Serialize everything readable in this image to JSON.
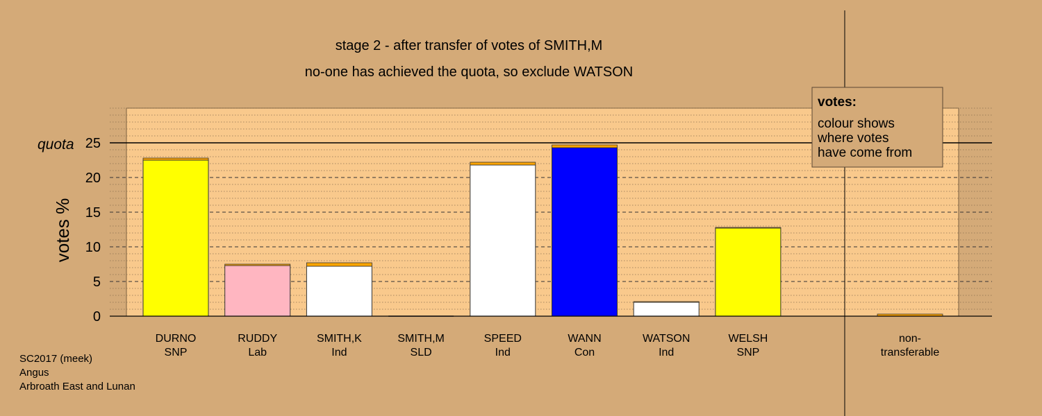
{
  "chart_data": {
    "type": "bar",
    "title_line1": "stage 2 - after transfer of votes of SMITH,M",
    "title_line2": "no-one has achieved the quota, so exclude WATSON",
    "ylabel": "votes %",
    "quota_label": "quota",
    "quota": 25,
    "ylim": [
      0,
      25
    ],
    "yticks": [
      0,
      5,
      10,
      15,
      20,
      25
    ],
    "grid": "dashed major, dotted minor",
    "candidates": [
      {
        "name": "DURNO",
        "party": "SNP",
        "color": "#ffff00",
        "base": 22.5,
        "transfer": 0.3
      },
      {
        "name": "RUDDY",
        "party": "Lab",
        "color": "#ffb6c1",
        "base": 7.3,
        "transfer": 0.2
      },
      {
        "name": "SMITH,K",
        "party": "Ind",
        "color": "#ffffff",
        "base": 7.2,
        "transfer": 0.5
      },
      {
        "name": "SMITH,M",
        "party": "SLD",
        "color": "#ffa500",
        "base": 0,
        "transfer": 0
      },
      {
        "name": "SPEED",
        "party": "Ind",
        "color": "#ffffff",
        "base": 21.8,
        "transfer": 0.4
      },
      {
        "name": "WANN",
        "party": "Con",
        "color": "#0000ff",
        "base": 24.3,
        "transfer": 0.4
      },
      {
        "name": "WATSON",
        "party": "Ind",
        "color": "#ffffff",
        "base": 2.0,
        "transfer": 0.1
      },
      {
        "name": "WELSH",
        "party": "SNP",
        "color": "#ffff00",
        "base": 12.7,
        "transfer": 0.1
      }
    ],
    "nontransferable": {
      "line1": "non-",
      "line2": "transferable",
      "value": 0.3
    },
    "transfer_color": "#ffa500",
    "legend": {
      "title": "votes:",
      "lines": [
        "colour shows",
        "where votes",
        "have come from"
      ],
      "placement": "top-right"
    }
  },
  "footer": {
    "line1": "SC2017 (meek)",
    "line2": "Angus",
    "line3": "Arbroath East and Lunan"
  }
}
